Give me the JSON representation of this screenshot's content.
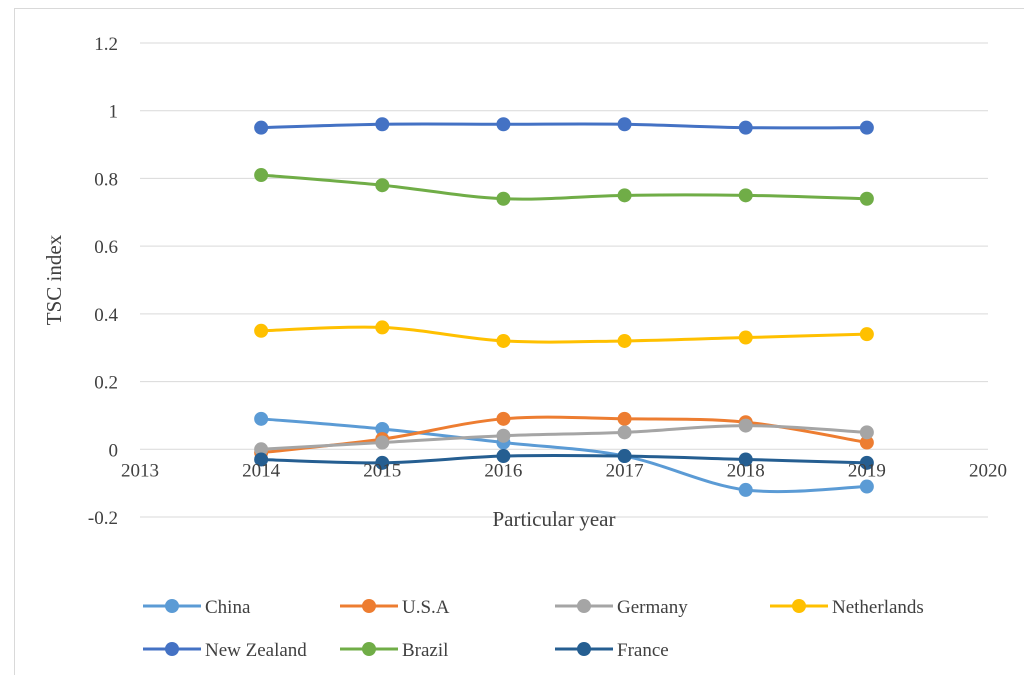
{
  "chart_data": {
    "type": "scatter",
    "title": "",
    "xlabel": "Particular year",
    "ylabel": "TSC index",
    "xlim": [
      2013,
      2020
    ],
    "ylim": [
      -0.2,
      1.2
    ],
    "x_ticks": [
      "2013",
      "2014",
      "2015",
      "2016",
      "2017",
      "2018",
      "2019",
      "2020"
    ],
    "y_ticks": [
      "1.2",
      "1",
      "0.8",
      "0.6",
      "0.4",
      "0.2",
      "0",
      "-0.2"
    ],
    "grid": "horizontal",
    "legend_position": "bottom",
    "x": [
      2014,
      2015,
      2016,
      2017,
      2018,
      2019
    ],
    "series": [
      {
        "name": "China",
        "color": "#5B9BD5",
        "values": [
          0.09,
          0.06,
          0.02,
          -0.02,
          -0.12,
          -0.11
        ]
      },
      {
        "name": "U.S.A",
        "color": "#ED7D31",
        "values": [
          -0.01,
          0.03,
          0.09,
          0.09,
          0.08,
          0.02
        ]
      },
      {
        "name": "Germany",
        "color": "#A5A5A5",
        "values": [
          0.0,
          0.02,
          0.04,
          0.05,
          0.07,
          0.05
        ]
      },
      {
        "name": "Netherlands",
        "color": "#FFC000",
        "values": [
          0.35,
          0.36,
          0.32,
          0.32,
          0.33,
          0.34
        ]
      },
      {
        "name": "New Zealand",
        "color": "#4472C4",
        "values": [
          0.95,
          0.96,
          0.96,
          0.96,
          0.95,
          0.95
        ]
      },
      {
        "name": "Brazil",
        "color": "#70AD47",
        "values": [
          0.81,
          0.78,
          0.74,
          0.75,
          0.75,
          0.74
        ]
      },
      {
        "name": "France",
        "color": "#255E91",
        "values": [
          -0.03,
          -0.04,
          -0.02,
          -0.02,
          -0.03,
          -0.04
        ]
      }
    ]
  }
}
